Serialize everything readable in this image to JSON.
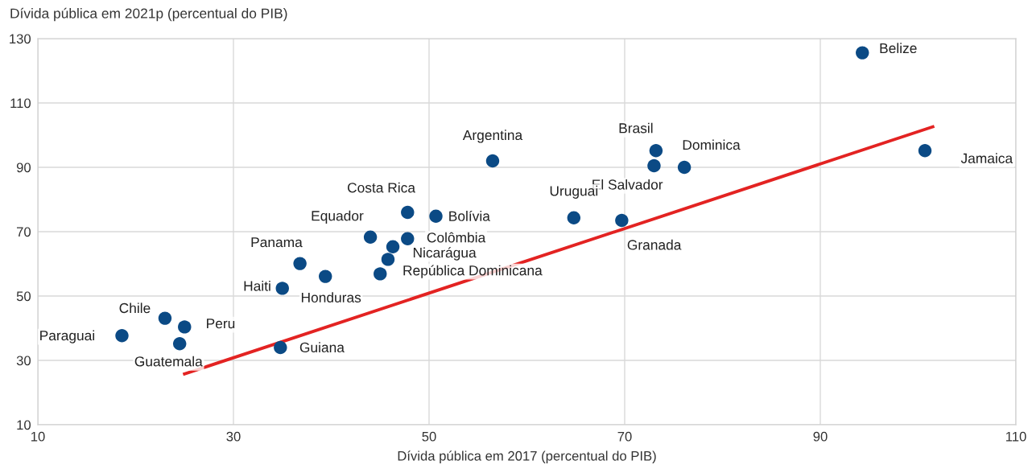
{
  "chart_data": {
    "type": "scatter",
    "xlabel": "Dívida pública em 2017 (percentual do PIB)",
    "ylabel": "Dívida pública em 2021p (percentual do PIB)",
    "xlim": [
      10,
      110
    ],
    "xticks": [
      10,
      30,
      50,
      70,
      90,
      110
    ],
    "ylim": [
      10,
      130
    ],
    "yticks": [
      10,
      30,
      50,
      70,
      90,
      110,
      130
    ],
    "grid": true,
    "series": [
      {
        "marker": "circle",
        "color": "#0b4a85",
        "x": [
          94.3,
          100.7,
          73.2,
          73.0,
          76.1,
          56.5,
          47.8,
          50.7,
          64.8,
          69.7,
          44.0,
          47.8,
          46.3,
          45.8,
          45.0,
          36.8,
          39.4,
          35.0,
          23.0,
          25.0,
          18.6,
          24.5,
          34.8
        ],
        "values": [
          125.6,
          95.2,
          95.2,
          90.5,
          90.0,
          92.0,
          76.0,
          74.8,
          74.3,
          73.5,
          68.3,
          67.8,
          65.3,
          61.4,
          56.9,
          60.1,
          56.1,
          52.4,
          43.1,
          40.4,
          37.7,
          35.2,
          34.0
        ]
      },
      {
        "type": "line",
        "color": "#e32322",
        "x": [
          25.0,
          101.5
        ],
        "values": [
          25.8,
          102.6
        ]
      }
    ],
    "annotations": [
      {
        "text": "Belize",
        "x": 94.3,
        "y": 125.6
      },
      {
        "text": "Jamaica",
        "x": 100.7,
        "y": 95.2
      },
      {
        "text": "Brasil",
        "x": 73.2,
        "y": 95.2
      },
      {
        "text": "El Salvador",
        "x": 73.0,
        "y": 90.5
      },
      {
        "text": "Dominica",
        "x": 76.1,
        "y": 90.0
      },
      {
        "text": "Argentina",
        "x": 56.5,
        "y": 92.0
      },
      {
        "text": "Costa Rica",
        "x": 47.8,
        "y": 76.0
      },
      {
        "text": "Bolívia",
        "x": 50.7,
        "y": 74.8
      },
      {
        "text": "Uruguai",
        "x": 64.8,
        "y": 74.3
      },
      {
        "text": "Granada",
        "x": 69.7,
        "y": 73.5
      },
      {
        "text": "Equador",
        "x": 44.0,
        "y": 68.3
      },
      {
        "text": "Colômbia",
        "x": 47.8,
        "y": 67.8
      },
      {
        "text": "Nicarágua",
        "x": 45.8,
        "y": 61.4
      },
      {
        "text": "República Dominicana",
        "x": 45.0,
        "y": 56.9
      },
      {
        "text": "Panama",
        "x": 36.8,
        "y": 60.1
      },
      {
        "text": "Honduras",
        "x": 39.4,
        "y": 56.1
      },
      {
        "text": "Haiti",
        "x": 35.0,
        "y": 52.4
      },
      {
        "text": "Chile",
        "x": 23.0,
        "y": 43.1
      },
      {
        "text": "Peru",
        "x": 25.0,
        "y": 40.4
      },
      {
        "text": "Paraguai",
        "x": 18.6,
        "y": 37.7
      },
      {
        "text": "Guatemala",
        "x": 24.5,
        "y": 35.2
      },
      {
        "text": "Guiana",
        "x": 34.8,
        "y": 34.0
      }
    ]
  }
}
